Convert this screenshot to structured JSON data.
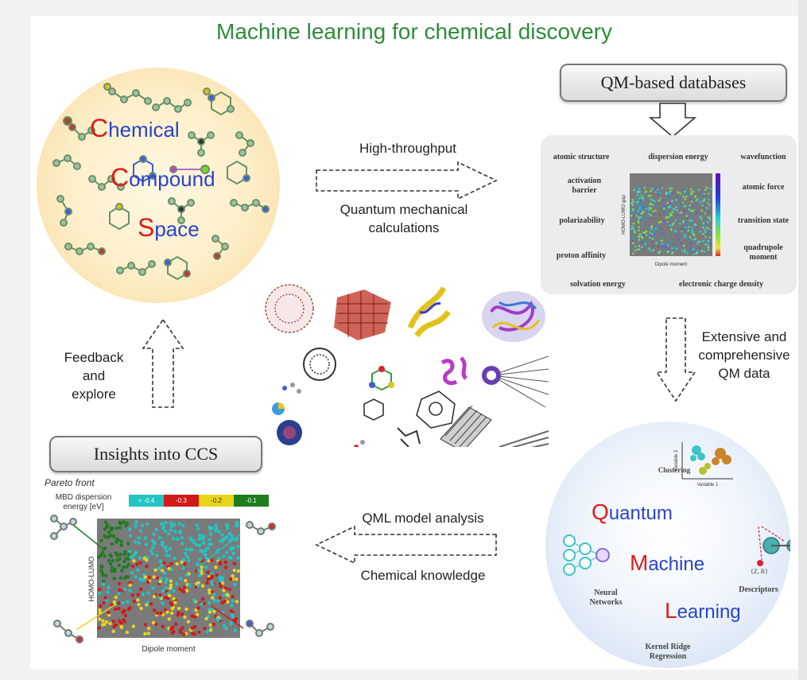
{
  "title": "Machine learning for chemical discovery",
  "ccs": {
    "line1": "hemical",
    "line1_first": "C",
    "line2": "ompound",
    "line2_first": "C",
    "line3": "pace",
    "line3_first": "S"
  },
  "arrows": {
    "top_upper": "High-throughput",
    "top_lower_1": "Quantum mechanical",
    "top_lower_2": "calculations",
    "right_1": "Extensive and",
    "right_2": "comprehensive",
    "right_3": "QM data",
    "bottom_upper": "QML model analysis",
    "bottom_lower": "Chemical knowledge",
    "left_1": "Feedback",
    "left_2": "and",
    "left_3": "explore"
  },
  "db_box_label": "QM-based databases",
  "db_properties": {
    "p1": "atomic structure",
    "p2": "dispersion energy",
    "p3": "wavefunction",
    "p4a": "activation",
    "p4b": "barrier",
    "p5": "atomic force",
    "p6": "polarizability",
    "p7": "transition state",
    "p8": "proton affinity",
    "p9a": "quadrupole",
    "p9b": "moment",
    "p10": "solvation energy",
    "p11": "electronic charge density",
    "axis_x": "Dipole moment",
    "axis_y": "HOMO-LUMO gap"
  },
  "insights_label": "Insights into CCS",
  "pareto": {
    "caption": "Pareto front",
    "legend_label_1": "MBD dispersion",
    "legend_label_2": "energy [eV]",
    "legend_items": [
      "< -0.4",
      "-0.3",
      "-0.2",
      "-0.1"
    ],
    "xlabel": "Dipole moment",
    "ylabel": "HOMO-LUMO"
  },
  "qml": {
    "w1_first": "Q",
    "w1": "uantum",
    "w2_first": "M",
    "w2": "achine",
    "w3_first": "L",
    "w3": "earning",
    "clustering": "Clustering",
    "neural_1": "Neural",
    "neural_2": "Networks",
    "descriptors": "Descriptors",
    "descriptor_formula": "{Z, R}",
    "krr_1": "Kernel Ridge",
    "krr_2": "Regression",
    "var1": "Variable 1",
    "var2": "Variable 2"
  },
  "colors": {
    "title": "#2e8b3a",
    "accent_red": "#e01b1b",
    "accent_blue": "#2944c8",
    "cyan": "#22c4c4",
    "red": "#d11a1a",
    "yellow": "#e8d51a",
    "green": "#1d7d1d"
  }
}
